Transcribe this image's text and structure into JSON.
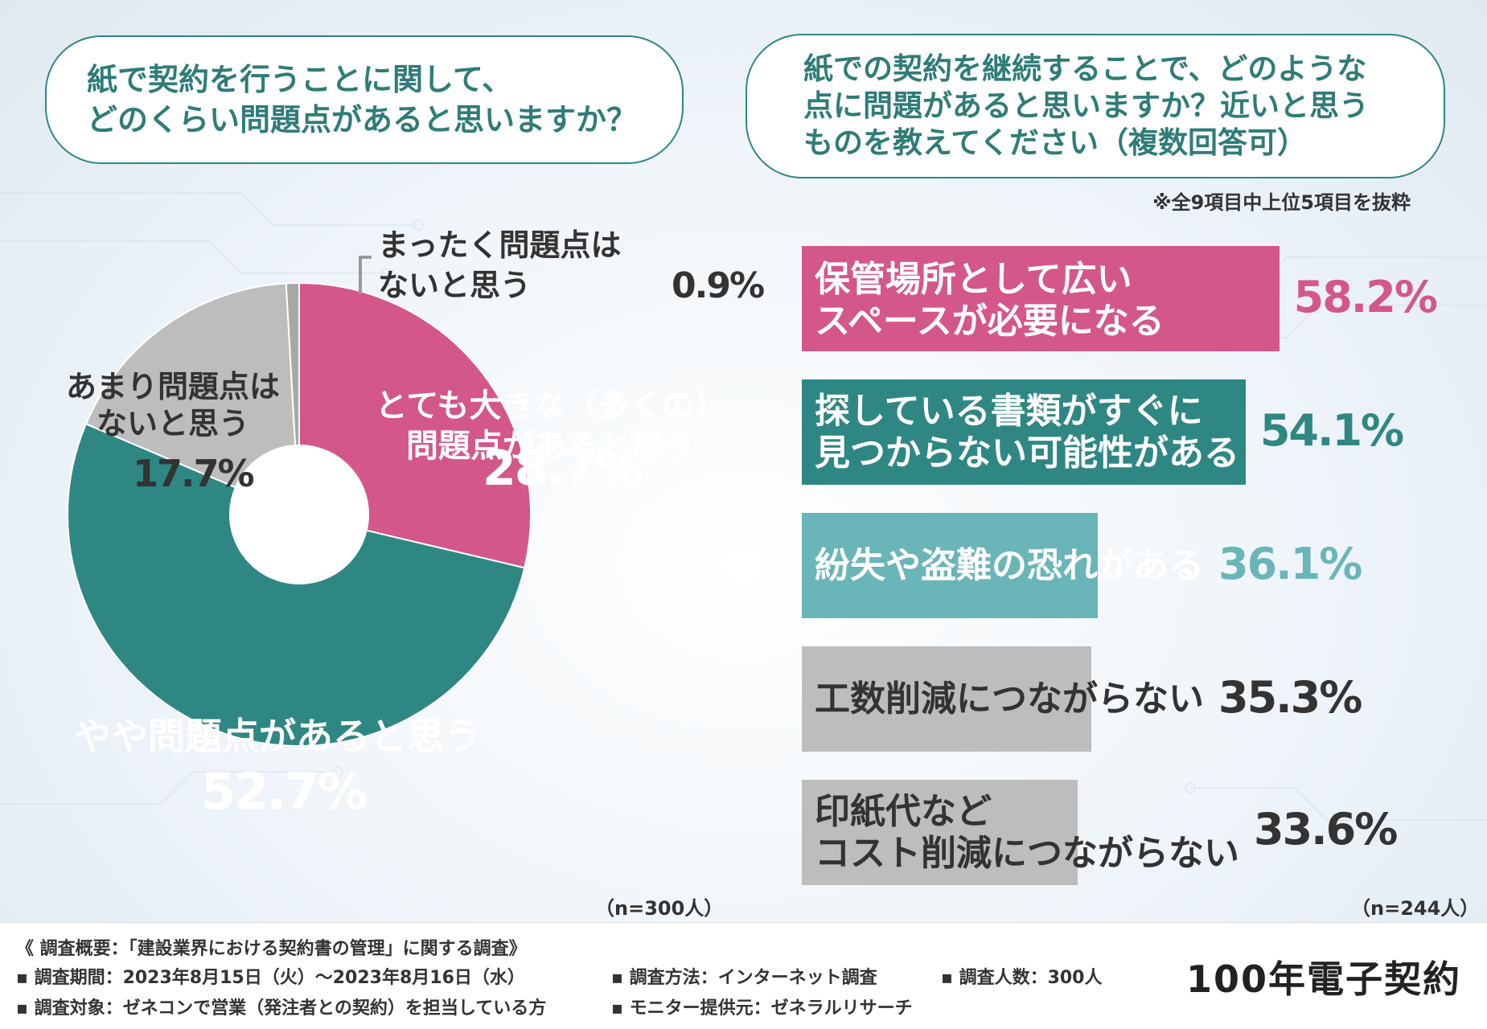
{
  "question_left": "紙で契約を行うことに関して、\nどのくらい問題点があると思いますか？",
  "question_right": "紙での契約を継続することで、どのような\n点に問題があると思いますか？近いと思う\nものを教えてください（複数回答可）",
  "note_right": "※全9項目中上位5項目を抜粋",
  "n_left": "（n=300人）",
  "n_right": "（n=244人）",
  "colors": {
    "pink": "#d4578a",
    "teal": "#2f8784",
    "lightteal": "#6ab5b8",
    "gray": "#bdbdbd"
  },
  "chart_data": [
    {
      "type": "pie",
      "donut": true,
      "slices": [
        {
          "label": "とても大きな（多くの）\n問題点があると思う",
          "value": 28.7,
          "display": "28.7%",
          "color": "#d4578a"
        },
        {
          "label": "やや問題点があると思う",
          "value": 52.7,
          "display": "52.7%",
          "color": "#2f8784"
        },
        {
          "label": "あまり問題点は\nないと思う",
          "value": 17.7,
          "display": "17.7%",
          "color": "#bdbdbd"
        },
        {
          "label": "まったく問題点は\nないと思う",
          "value": 0.9,
          "display": "0.9%",
          "color": "#a8a8a8"
        }
      ]
    },
    {
      "type": "bar",
      "orientation": "horizontal",
      "xlim": [
        0,
        60
      ],
      "categories": [
        "保管場所として広い\nスペースが必要になる",
        "探している書類がすぐに\n見つからない可能性がある",
        "紛失や盗難の恐れがある",
        "工数削減につながらない",
        "印紙代など\nコスト削減につながらない"
      ],
      "values": [
        58.2,
        54.1,
        36.1,
        35.3,
        33.6
      ],
      "display": [
        "58.2%",
        "54.1%",
        "36.1%",
        "35.3%",
        "33.6%"
      ],
      "colors": [
        "#d4578a",
        "#2f8784",
        "#6ab5b8",
        "#bdbdbd",
        "#bdbdbd"
      ],
      "label_colors": [
        "#ffffff",
        "#ffffff",
        "#ffffff",
        "#333333",
        "#333333"
      ],
      "value_colors": [
        "#d4578a",
        "#2f8784",
        "#6ab5b8",
        "#333333",
        "#333333"
      ]
    }
  ],
  "footer": {
    "overview": "《 調査概要：「建設業界における契約書の管理」に関する調査》",
    "period": "▪ 調査期間：2023年8月15日（火）～2023年8月16日（水）",
    "method": "▪ 調査方法：インターネット調査",
    "count": "▪ 調査人数：300人",
    "target": "▪ 調査対象：ゼネコンで営業（発注者との契約）を担当している方",
    "provider": "▪ モニター提供元：ゼネラルリサーチ",
    "brand": "100年電子契約"
  }
}
